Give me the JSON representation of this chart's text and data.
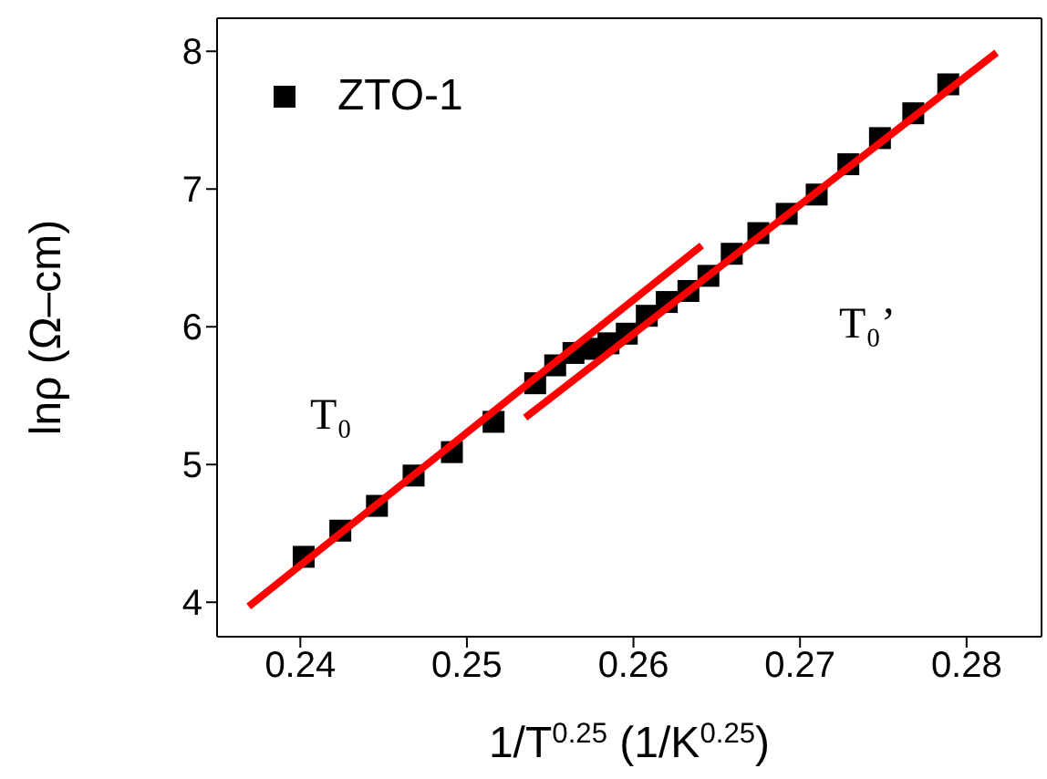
{
  "chart_data": {
    "type": "scatter",
    "xlabel": "1/T$^{0.25}$ (1/K$^{0.25}$)",
    "ylabel": "lnρ (Ω–cm)",
    "xlim": [
      0.235,
      0.2845
    ],
    "xticks": [
      0.24,
      0.25,
      0.26,
      0.27,
      0.28
    ],
    "ylim": [
      3.75,
      8.24
    ],
    "yticks": [
      4,
      5,
      6,
      7,
      8
    ],
    "legend": "top left",
    "marker": "square",
    "annotations": [
      "T₀",
      "T₀’"
    ],
    "series": [
      {
        "name": "ZTO-1",
        "color": "#000000",
        "x": [
          0.2402,
          0.2424,
          0.2446,
          0.2468,
          0.2491,
          0.2516,
          0.2541,
          0.2553,
          0.2564,
          0.2575,
          0.2585,
          0.2596,
          0.2608,
          0.262,
          0.2633,
          0.2645,
          0.2659,
          0.2675,
          0.2692,
          0.271,
          0.2729,
          0.2748,
          0.2768,
          0.2789
        ],
        "values": [
          4.33,
          4.52,
          4.7,
          4.92,
          5.09,
          5.31,
          5.59,
          5.72,
          5.81,
          5.84,
          5.88,
          5.95,
          6.08,
          6.18,
          6.26,
          6.37,
          6.53,
          6.68,
          6.82,
          6.96,
          7.18,
          7.37,
          7.55,
          7.76
        ]
      },
      {
        "type": "line",
        "color": "#ff0000",
        "marker": "none",
        "x": [
          0.2369,
          0.2641
        ],
        "values": [
          3.97,
          6.59
        ]
      },
      {
        "type": "line",
        "color": "#ff0000",
        "marker": "none",
        "x": [
          0.2535,
          0.2818
        ],
        "values": [
          5.34,
          7.99
        ]
      }
    ]
  }
}
